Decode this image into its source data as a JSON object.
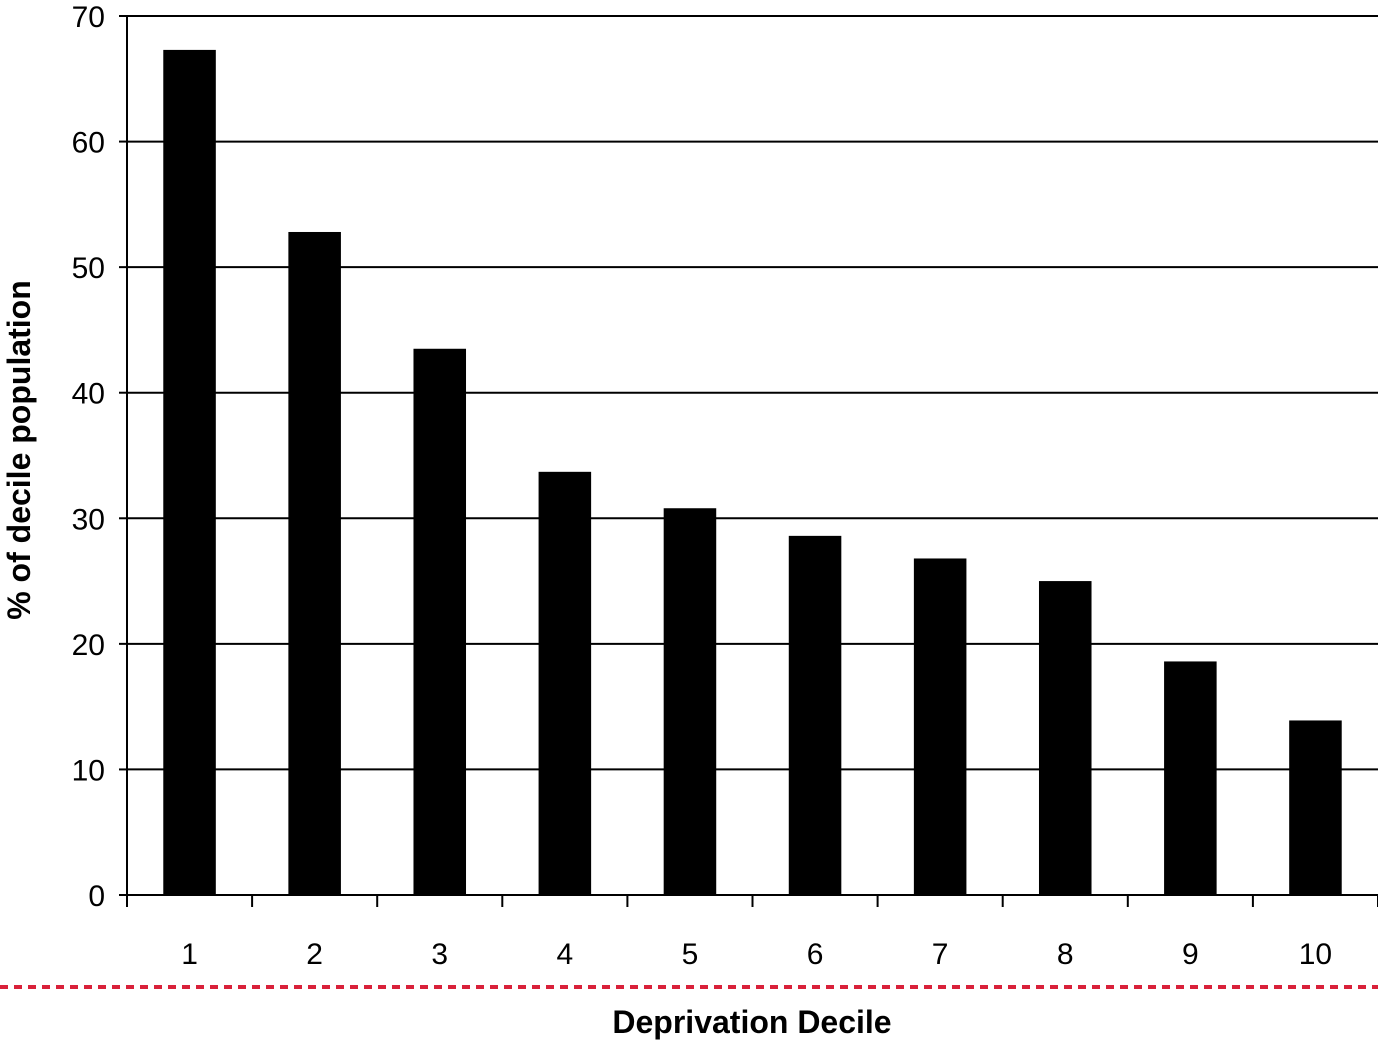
{
  "chart_data": {
    "type": "bar",
    "title": "",
    "xlabel": "Deprivation Decile",
    "ylabel": "% of decile population",
    "categories": [
      "1",
      "2",
      "3",
      "4",
      "5",
      "6",
      "7",
      "8",
      "9",
      "10"
    ],
    "values": [
      67.3,
      52.8,
      43.5,
      33.7,
      30.8,
      28.6,
      26.8,
      25.0,
      18.6,
      13.9
    ],
    "ylim": [
      0,
      70
    ],
    "yticks": [
      "0",
      "10",
      "20",
      "30",
      "40",
      "50",
      "60",
      "70"
    ],
    "grid": true,
    "legend": "none",
    "colors": {
      "bar": "#000000",
      "grid": "#000000",
      "separator": "#d9213a"
    }
  }
}
